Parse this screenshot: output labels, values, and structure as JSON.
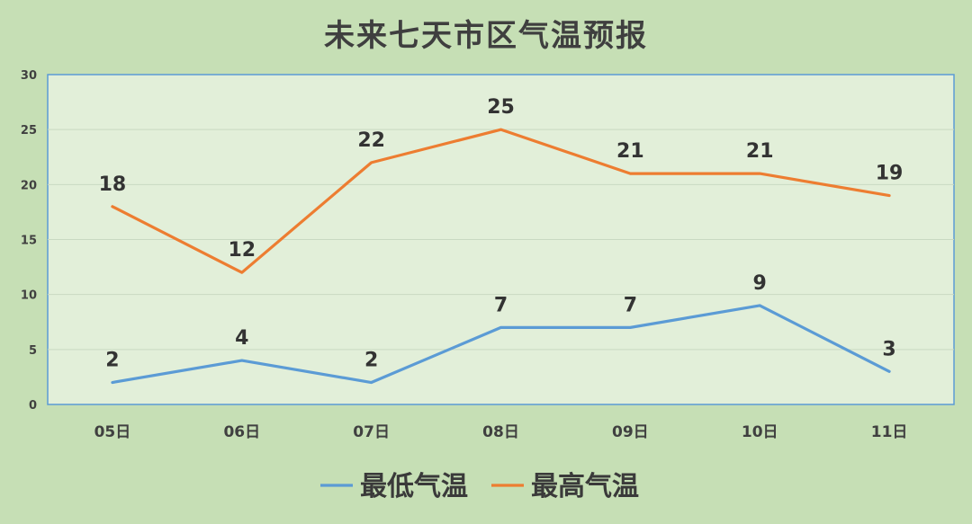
{
  "chart_data": {
    "type": "line",
    "title": "未来七天市区气温预报",
    "categories": [
      "05日",
      "06日",
      "07日",
      "08日",
      "09日",
      "10日",
      "11日"
    ],
    "series": [
      {
        "name": "最低气温",
        "values": [
          2,
          4,
          2,
          7,
          7,
          9,
          3
        ],
        "color": "#5b9bd5"
      },
      {
        "name": "最高气温",
        "values": [
          18,
          12,
          22,
          25,
          21,
          21,
          19
        ],
        "color": "#ed7d31"
      }
    ],
    "ylim": [
      0,
      30
    ],
    "yticks": [
      0,
      5,
      10,
      15,
      20,
      25,
      30
    ],
    "xlabel": "",
    "ylabel": "",
    "grid": true,
    "legend": "bottom",
    "plot_background": "#e2efd9",
    "border_color": "#5b9bd5"
  }
}
